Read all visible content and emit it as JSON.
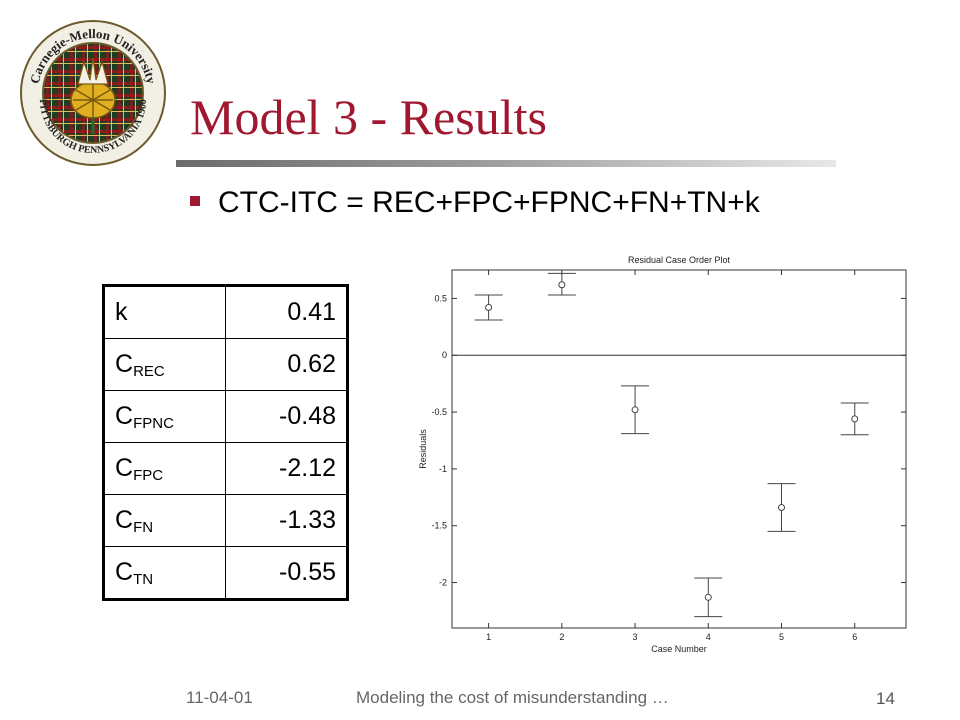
{
  "slide": {
    "title": "Model 3 - Results",
    "bullet": "CTC-ITC = REC+FPC+FPNC+FN+TN+k",
    "logo": {
      "top_text": "Carnegie-Mellon University",
      "bottom_text": "PITTSBURGH PENNSYLVANIA 1900"
    }
  },
  "coefficients": [
    {
      "symbol": "k",
      "sub": "",
      "value": "0.41"
    },
    {
      "symbol": "C",
      "sub": "REC",
      "value": "0.62"
    },
    {
      "symbol": "C",
      "sub": "FPNC",
      "value": "-0.48"
    },
    {
      "symbol": "C",
      "sub": "FPC",
      "value": "-2.12"
    },
    {
      "symbol": "C",
      "sub": "FN",
      "value": "-1.33"
    },
    {
      "symbol": "C",
      "sub": "TN",
      "value": "-0.55"
    }
  ],
  "chart_data": {
    "type": "scatter",
    "title": "Residual Case Order Plot",
    "xlabel": "Case Number",
    "ylabel": "Residuals",
    "xlim": [
      0.5,
      6.7
    ],
    "ylim": [
      -2.4,
      0.75
    ],
    "xticks": [
      1,
      2,
      3,
      4,
      5,
      6
    ],
    "yticks": [
      0.5,
      0,
      -0.5,
      -1,
      -1.5,
      -2
    ],
    "ytick_labels": [
      "0.5",
      "0",
      "-0.5",
      "-1",
      "-1.5",
      "-2"
    ],
    "zero_line": true,
    "points": [
      {
        "x": 1,
        "y": 0.42,
        "low": 0.31,
        "high": 0.53
      },
      {
        "x": 2,
        "y": 0.62,
        "low": 0.53,
        "high": 0.72
      },
      {
        "x": 3,
        "y": -0.48,
        "low": -0.69,
        "high": -0.27
      },
      {
        "x": 4,
        "y": -2.13,
        "low": -2.3,
        "high": -1.96
      },
      {
        "x": 5,
        "y": -1.34,
        "low": -1.55,
        "high": -1.13
      },
      {
        "x": 6,
        "y": -0.56,
        "low": -0.7,
        "high": -0.42
      }
    ]
  },
  "footer": {
    "date": "11-04-01",
    "text": "Modeling the cost of misunderstanding …",
    "page": "14"
  }
}
